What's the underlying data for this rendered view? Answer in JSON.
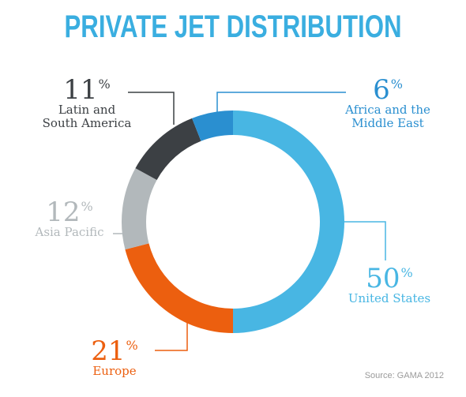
{
  "chart_data": {
    "type": "pie",
    "title": "PRIVATE JET DISTRIBUTION",
    "source": "Source: GAMA 2012",
    "slices": [
      {
        "label_lines": [
          "United States"
        ],
        "value": 50,
        "percent_text": "50",
        "color": "#48b6e3"
      },
      {
        "label_lines": [
          "Europe"
        ],
        "value": 21,
        "percent_text": "21",
        "color": "#ec5f0f"
      },
      {
        "label_lines": [
          "Asia Pacific"
        ],
        "value": 12,
        "percent_text": "12",
        "color": "#b2b8bb"
      },
      {
        "label_lines": [
          "Latin and",
          "South America"
        ],
        "value": 11,
        "percent_text": "11",
        "color": "#3c4044"
      },
      {
        "label_lines": [
          "Africa and the",
          "Middle East"
        ],
        "value": 6,
        "percent_text": "6",
        "color": "#2a8fd0"
      }
    ],
    "percent_symbol": "%",
    "start_angle_deg": 0,
    "direction": "clockwise",
    "donut": true
  }
}
